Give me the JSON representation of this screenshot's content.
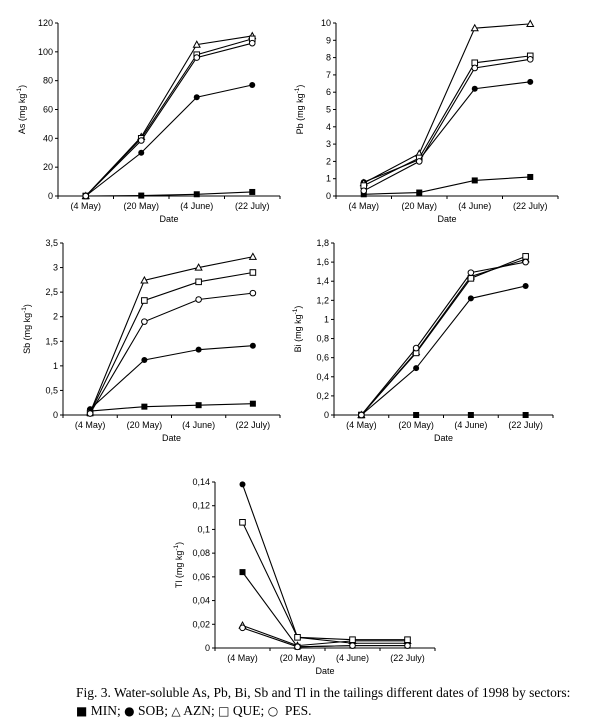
{
  "chart_data": [
    {
      "type": "line",
      "id": "as",
      "ylabel": "As (mg kg-1)",
      "ylabel_main": "As (mg kg",
      "ylabel_sup": "-1",
      "ylabel_end": ")",
      "xlabel": "Date",
      "categories": [
        "(4 May)",
        "(20 May)",
        "(4 June)",
        "(22 July)"
      ],
      "ylim": [
        0,
        120
      ],
      "yticks": [
        "0",
        "20",
        "40",
        "60",
        "80",
        "100",
        "120"
      ],
      "series": [
        {
          "name": "MIN",
          "marker": "filled-square",
          "values": [
            0,
            0.3,
            1.2,
            2.8
          ]
        },
        {
          "name": "SOB",
          "marker": "filled-circle",
          "values": [
            0,
            30,
            68.5,
            77
          ]
        },
        {
          "name": "AZN",
          "marker": "open-triangle",
          "values": [
            0,
            41,
            105,
            111
          ]
        },
        {
          "name": "QUE",
          "marker": "open-square",
          "values": [
            0,
            40,
            98,
            109
          ]
        },
        {
          "name": "PES",
          "marker": "open-circle",
          "values": [
            0,
            38.5,
            96,
            106
          ]
        }
      ]
    },
    {
      "type": "line",
      "id": "pb",
      "ylabel": "Pb (mg kg-1)",
      "ylabel_main": "Pb (mg kg",
      "ylabel_sup": "-1",
      "ylabel_end": ")",
      "xlabel": "Date",
      "categories": [
        "(4 May)",
        "(20 May)",
        "(4 June)",
        "(22 July)"
      ],
      "ylim": [
        0,
        10
      ],
      "yticks": [
        "0",
        "1",
        "2",
        "3",
        "4",
        "5",
        "6",
        "7",
        "8",
        "9",
        "10"
      ],
      "series": [
        {
          "name": "MIN",
          "marker": "filled-square",
          "values": [
            0.1,
            0.2,
            0.9,
            1.1
          ]
        },
        {
          "name": "SOB",
          "marker": "filled-circle",
          "values": [
            0.8,
            2.1,
            6.2,
            6.6
          ]
        },
        {
          "name": "AZN",
          "marker": "open-triangle",
          "values": [
            0.75,
            2.45,
            9.7,
            9.95
          ]
        },
        {
          "name": "QUE",
          "marker": "open-square",
          "values": [
            0.6,
            2.2,
            7.7,
            8.1
          ]
        },
        {
          "name": "PES",
          "marker": "open-circle",
          "values": [
            0.3,
            2.0,
            7.4,
            7.9
          ]
        }
      ]
    },
    {
      "type": "line",
      "id": "sb",
      "ylabel": "Sb (mg kg-1)",
      "ylabel_main": "Sb (mg kg",
      "ylabel_sup": "-1",
      "ylabel_end": ")",
      "xlabel": "Date",
      "categories": [
        "(4 May)",
        "(20 May)",
        "(4 June)",
        "(22 July)"
      ],
      "ylim": [
        0,
        3.5
      ],
      "yticks": [
        "0",
        "0,5",
        "1",
        "1,5",
        "2",
        "2,5",
        "3",
        "3,5"
      ],
      "series": [
        {
          "name": "MIN",
          "marker": "filled-square",
          "values": [
            0.08,
            0.17,
            0.2,
            0.23
          ]
        },
        {
          "name": "SOB",
          "marker": "filled-circle",
          "values": [
            0.12,
            1.12,
            1.33,
            1.41
          ]
        },
        {
          "name": "AZN",
          "marker": "open-triangle",
          "values": [
            0.05,
            2.74,
            3.0,
            3.22
          ]
        },
        {
          "name": "QUE",
          "marker": "open-square",
          "values": [
            0.04,
            2.33,
            2.71,
            2.9
          ]
        },
        {
          "name": "PES",
          "marker": "open-circle",
          "values": [
            0.03,
            1.9,
            2.35,
            2.48
          ]
        }
      ]
    },
    {
      "type": "line",
      "id": "bi",
      "ylabel": "Bi (mg kg-1)",
      "ylabel_main": "Bi (mg kg",
      "ylabel_sup": "-1",
      "ylabel_end": ")",
      "xlabel": "Date",
      "categories": [
        "(4 May)",
        "(20 May)",
        "(4 June)",
        "(22 July)"
      ],
      "ylim": [
        0,
        1.8
      ],
      "yticks": [
        "0",
        "0,2",
        "0,4",
        "0,6",
        "0,8",
        "1",
        "1,2",
        "1,4",
        "1,6",
        "1,8"
      ],
      "series": [
        {
          "name": "MIN",
          "marker": "filled-square",
          "values": [
            0,
            0,
            0,
            0
          ]
        },
        {
          "name": "SOB",
          "marker": "filled-circle",
          "values": [
            0,
            0.49,
            1.22,
            1.35
          ]
        },
        {
          "name": "AZN",
          "marker": "open-triangle",
          "values": [
            0,
            0.66,
            1.45,
            1.63
          ]
        },
        {
          "name": "QUE",
          "marker": "open-square",
          "values": [
            0,
            0.65,
            1.43,
            1.66
          ]
        },
        {
          "name": "PES",
          "marker": "open-circle",
          "values": [
            0,
            0.7,
            1.49,
            1.6
          ]
        }
      ]
    },
    {
      "type": "line",
      "id": "tl",
      "ylabel": "Tl (mg kg-1)",
      "ylabel_main": "Tl (mg kg",
      "ylabel_sup": "-1",
      "ylabel_end": ")",
      "xlabel": "Date",
      "categories": [
        "(4 May)",
        "(20 May)",
        "(4 June)",
        "(22 July)"
      ],
      "ylim": [
        0,
        0.14
      ],
      "yticks": [
        "0",
        "0,02",
        "0,04",
        "0,06",
        "0,08",
        "0,1",
        "0,12",
        "0,14"
      ],
      "series": [
        {
          "name": "MIN",
          "marker": "filled-square",
          "values": [
            0.064,
            0.001,
            0.002,
            0.002
          ]
        },
        {
          "name": "SOB",
          "marker": "filled-circle",
          "values": [
            0.138,
            0.009,
            0.004,
            0.004
          ]
        },
        {
          "name": "AZN",
          "marker": "open-triangle",
          "values": [
            0.019,
            0.002,
            0.006,
            0.006
          ]
        },
        {
          "name": "QUE",
          "marker": "open-square",
          "values": [
            0.106,
            0.009,
            0.007,
            0.007
          ]
        },
        {
          "name": "PES",
          "marker": "open-circle",
          "values": [
            0.017,
            0.001,
            0.002,
            0.002
          ]
        }
      ]
    }
  ],
  "caption": {
    "line1": "Fig. 3.  Water-soluble As, Pb, Bi, Sb and Tl in the tailings different dates of 1998 by sectors:",
    "legend": [
      {
        "symbol": "■",
        "label": "MIN;"
      },
      {
        "symbol": "●",
        "label": "SOB;"
      },
      {
        "symbol": "△",
        "label": "AZN;"
      },
      {
        "symbol": "□",
        "label": "QUE;"
      },
      {
        "symbol": "○",
        "label": "PES."
      }
    ]
  }
}
